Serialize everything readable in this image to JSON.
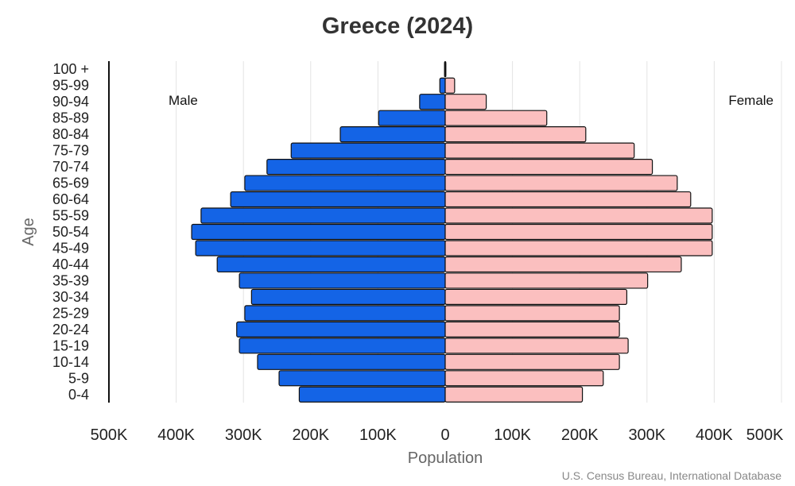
{
  "chart_data": {
    "type": "bar",
    "orientation": "horizontal-pyramid",
    "title": "Greece (2024)",
    "xlabel": "Population",
    "ylabel": "Age",
    "source": "U.S. Census Bureau, International Database",
    "xlim": [
      -500000,
      500000
    ],
    "x_ticks": [
      "500K",
      "400K",
      "300K",
      "200K",
      "100K",
      "0",
      "100K",
      "200K",
      "300K",
      "400K",
      "500K"
    ],
    "grid": true,
    "categories": [
      "0-4",
      "5-9",
      "10-14",
      "15-19",
      "20-24",
      "25-29",
      "30-34",
      "35-39",
      "40-44",
      "45-49",
      "50-54",
      "55-59",
      "60-64",
      "65-69",
      "70-74",
      "75-79",
      "80-84",
      "85-89",
      "90-94",
      "95-99",
      "100 +"
    ],
    "series": [
      {
        "name": "Male",
        "color": "#1464e6",
        "values": [
          217000,
          247000,
          279000,
          306000,
          310000,
          298000,
          288000,
          306000,
          339000,
          371000,
          377000,
          363000,
          319000,
          298000,
          265000,
          229000,
          156000,
          99000,
          38000,
          8000,
          1000
        ]
      },
      {
        "name": "Female",
        "color": "#fbbfbf",
        "values": [
          204000,
          235000,
          259000,
          272000,
          259000,
          259000,
          270000,
          301000,
          351000,
          397000,
          397000,
          397000,
          365000,
          345000,
          308000,
          281000,
          209000,
          151000,
          61000,
          14000,
          1000
        ]
      }
    ]
  }
}
